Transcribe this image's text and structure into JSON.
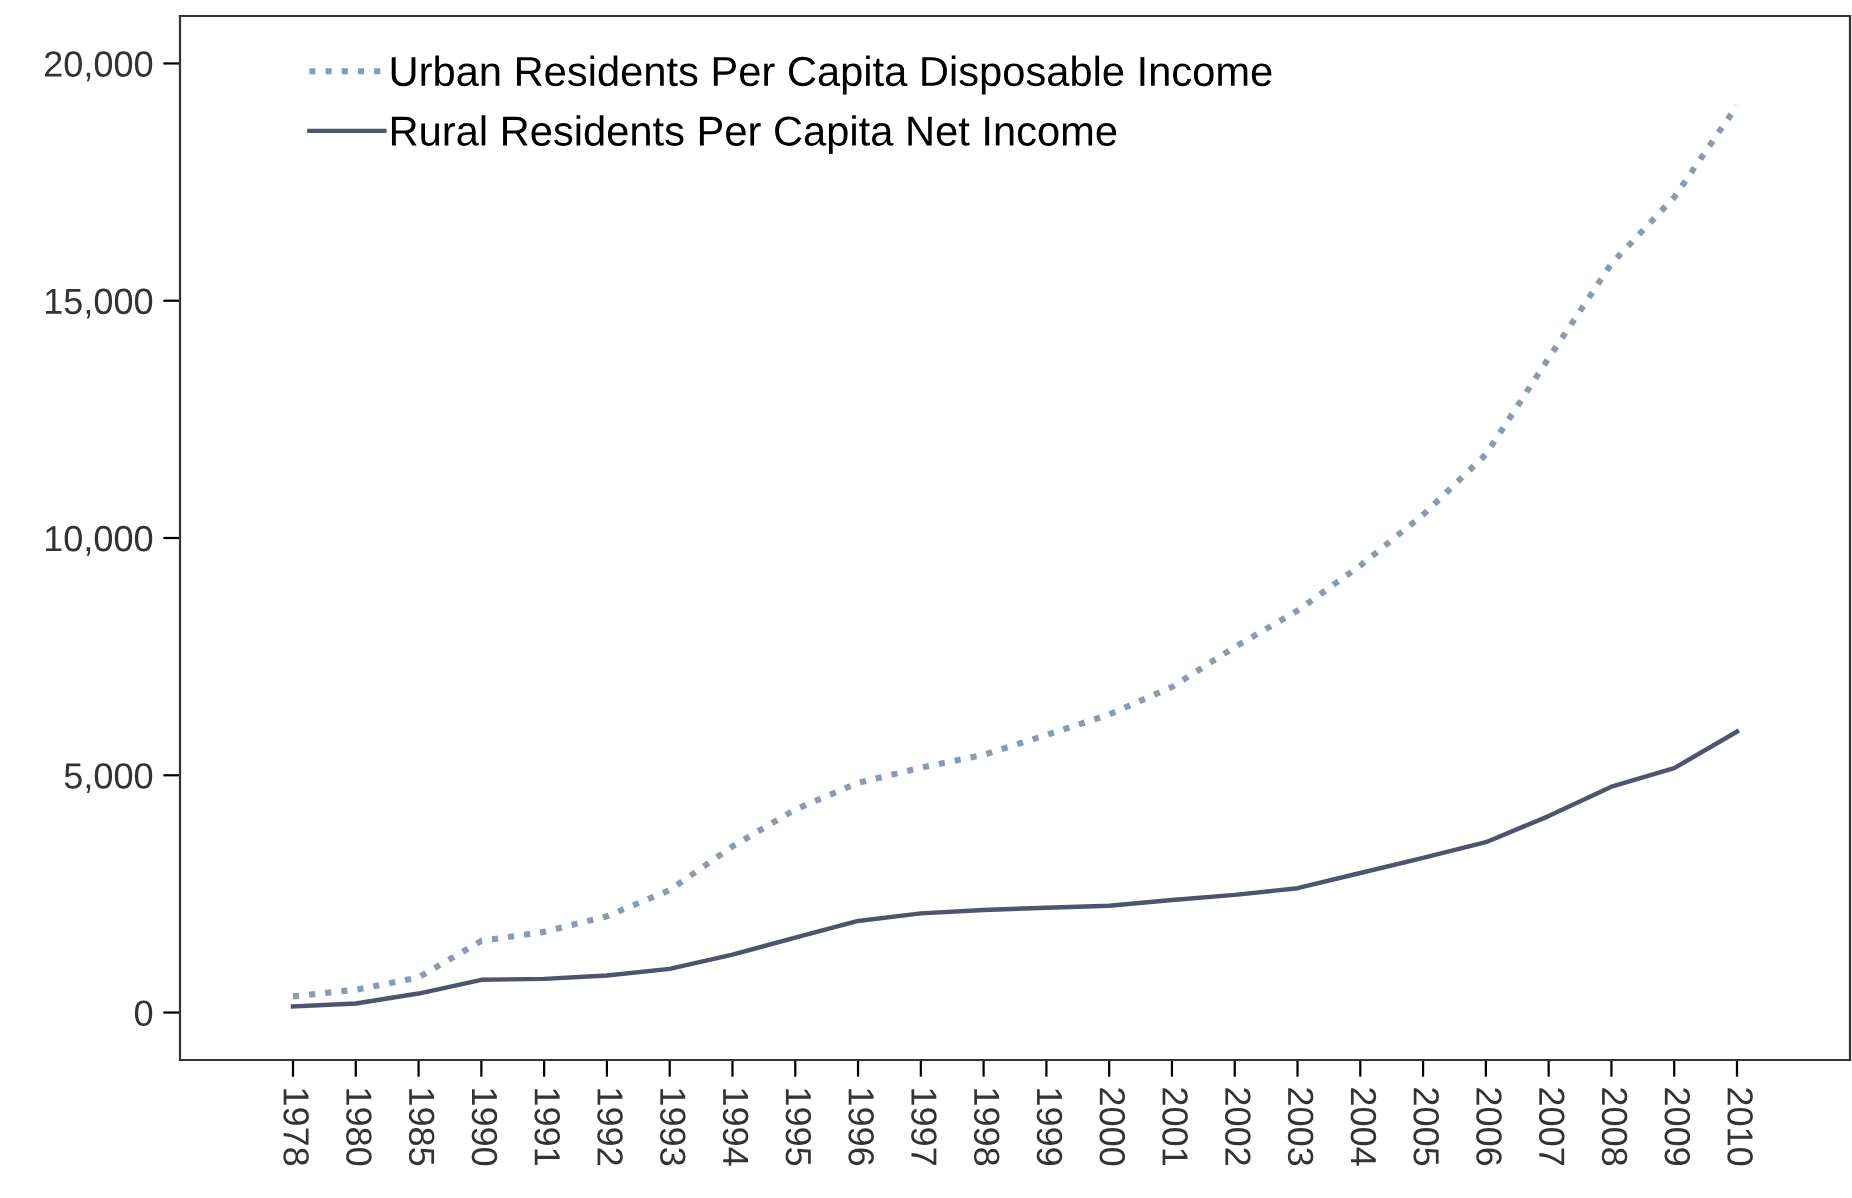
{
  "chart_data": {
    "type": "line",
    "categories": [
      "1978",
      "1980",
      "1985",
      "1990",
      "1991",
      "1992",
      "1993",
      "1994",
      "1995",
      "1996",
      "1997",
      "1998",
      "1999",
      "2000",
      "2001",
      "2002",
      "2003",
      "2004",
      "2005",
      "2006",
      "2007",
      "2008",
      "2009",
      "2010"
    ],
    "series": [
      {
        "name": "Urban Residents Per Capita Disposable Income",
        "color": "#8a9bb0",
        "line_style": "dotted",
        "values": [
          340,
          480,
          740,
          1510,
          1700,
          2030,
          2580,
          3500,
          4280,
          4840,
          5160,
          5430,
          5850,
          6280,
          6860,
          7700,
          8470,
          9420,
          10490,
          11760,
          13790,
          15780,
          17180,
          19110
        ]
      },
      {
        "name": "Rural Residents Per Capita Net Income",
        "color": "#4e5370",
        "line_style": "solid",
        "values": [
          130,
          190,
          400,
          690,
          710,
          780,
          920,
          1220,
          1580,
          1930,
          2090,
          2160,
          2210,
          2250,
          2370,
          2480,
          2620,
          2940,
          3260,
          3590,
          4140,
          4760,
          5150,
          5920
        ]
      }
    ],
    "ylim": [
      -1000,
      21000
    ],
    "yticks": [
      {
        "value": 0,
        "label": "0"
      },
      {
        "value": 5000,
        "label": "5,000"
      },
      {
        "value": 10000,
        "label": "10,000"
      },
      {
        "value": 15000,
        "label": "15,000"
      },
      {
        "value": 20000,
        "label": "20,000"
      }
    ],
    "grid": false,
    "legend": "top left",
    "marker": "none"
  }
}
